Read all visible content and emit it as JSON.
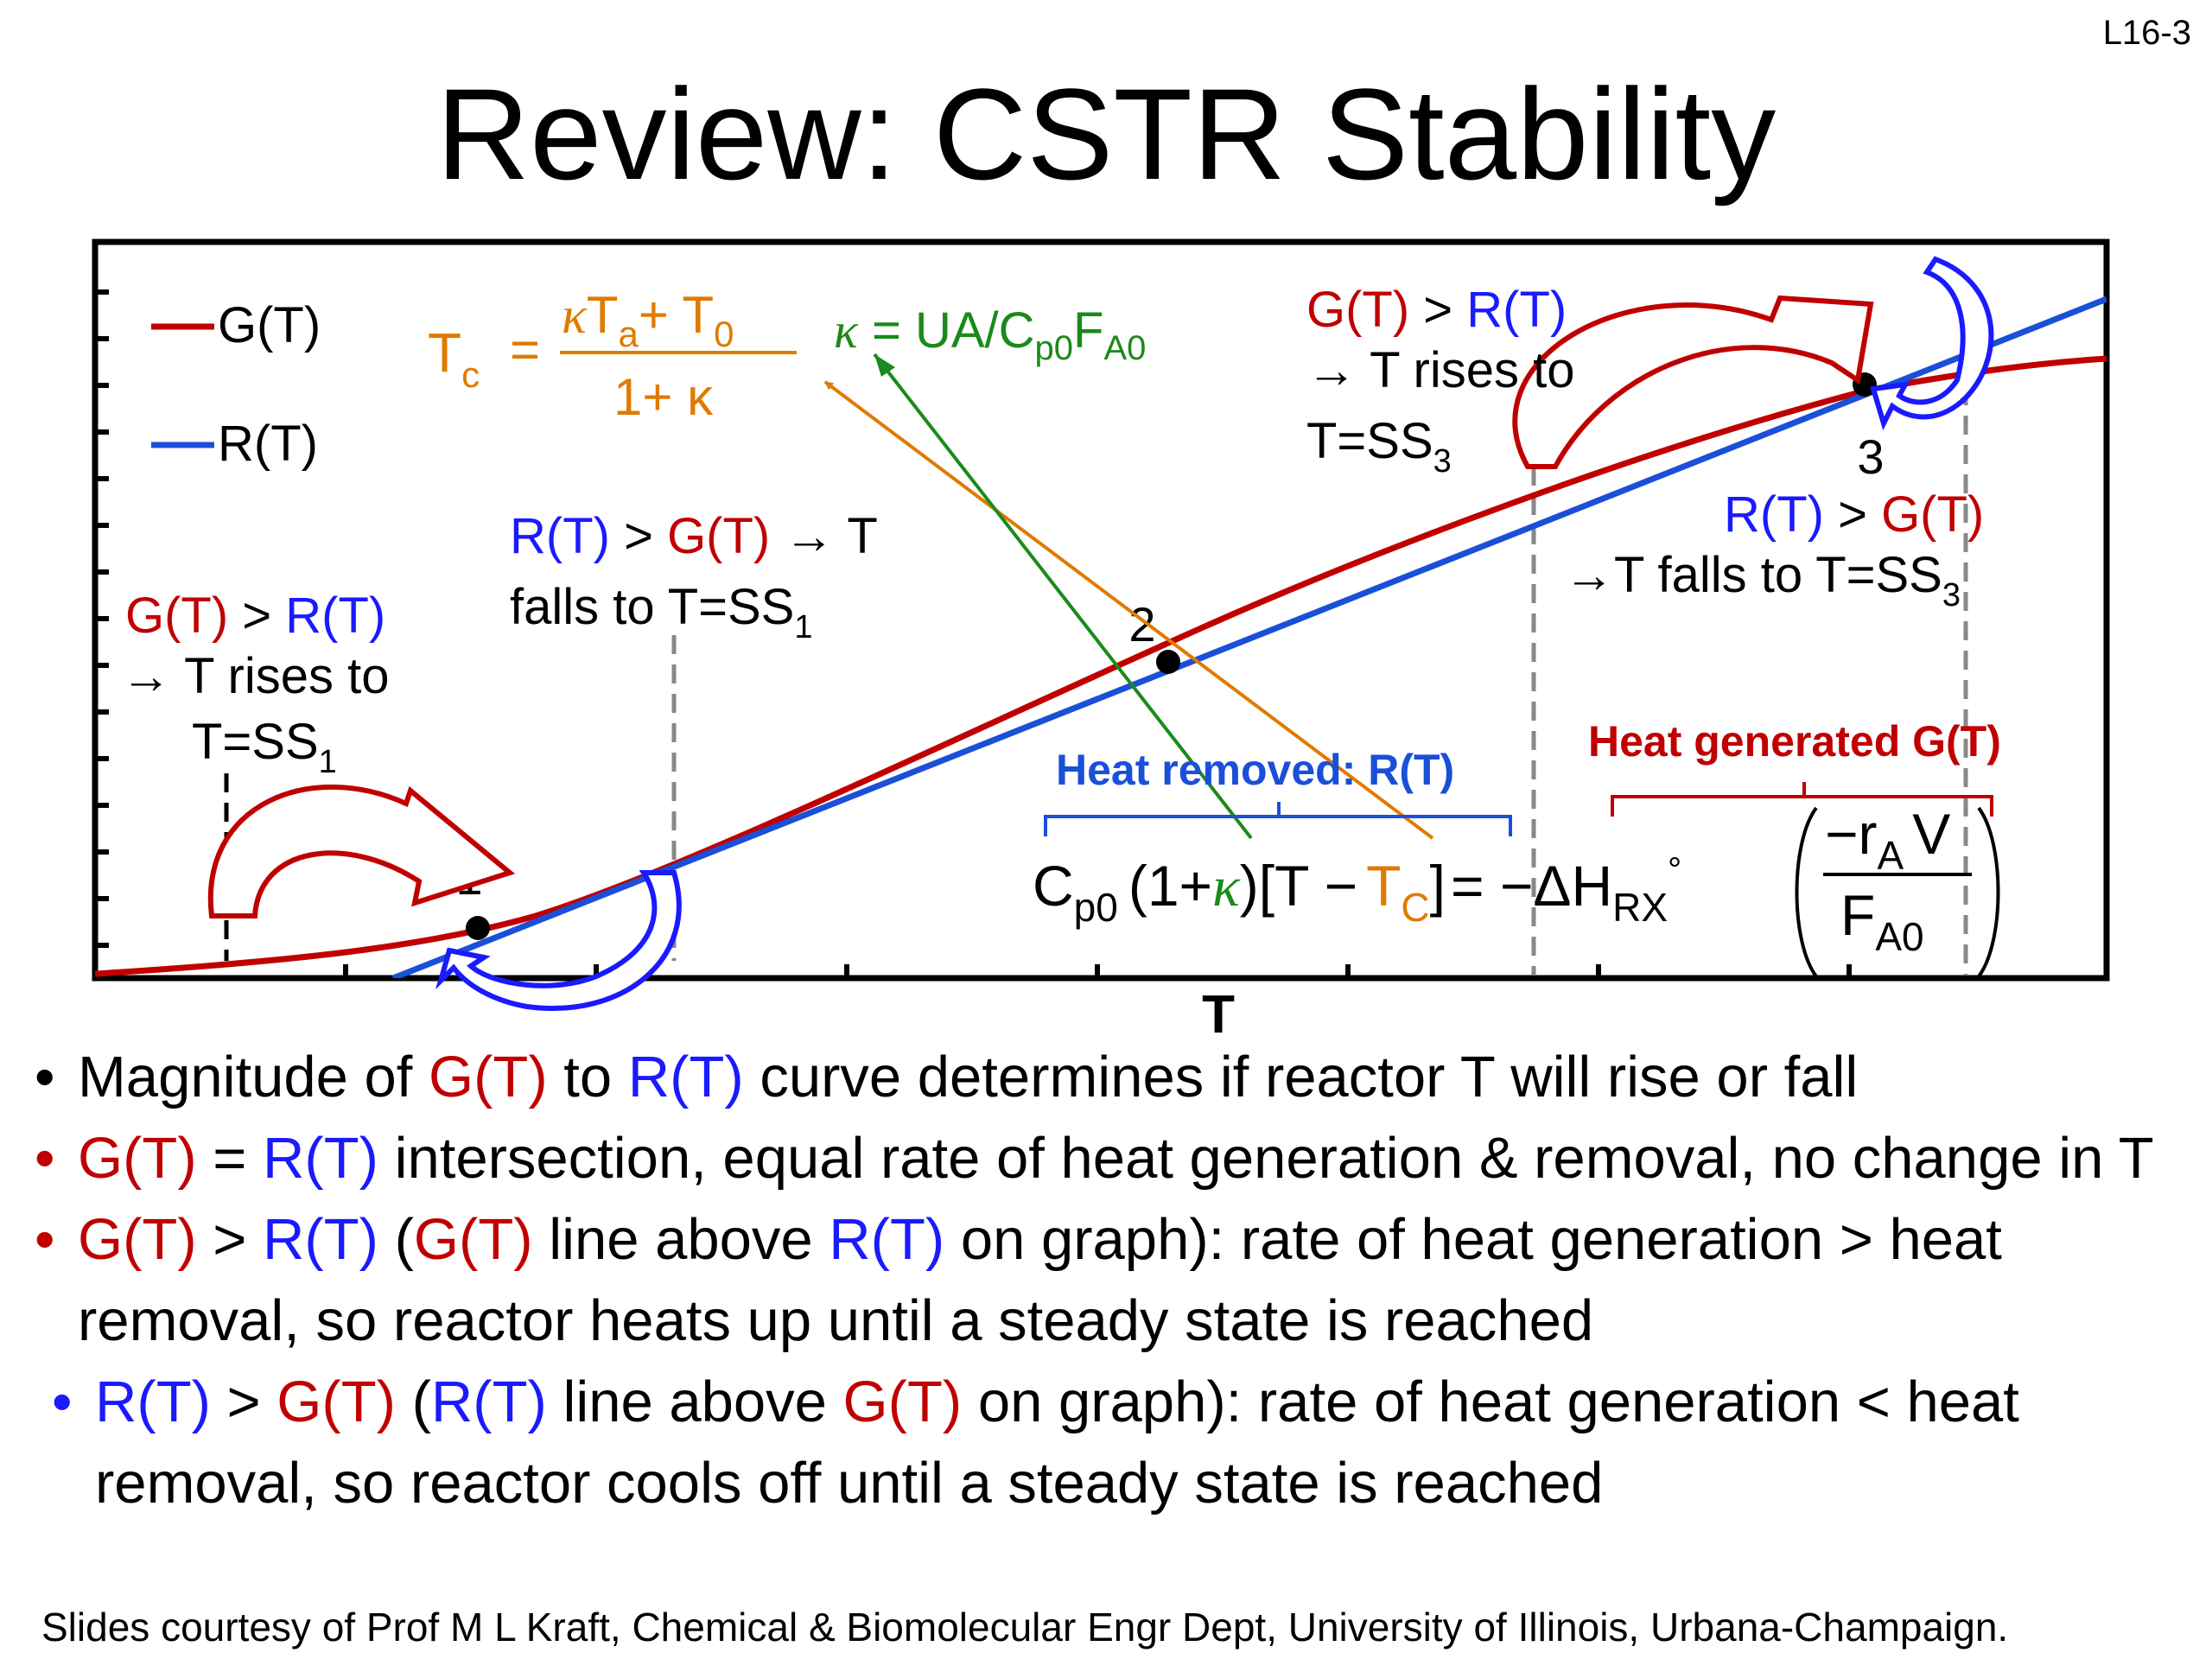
{
  "slide_number": "L16-3",
  "title": "Review: CSTR Stability",
  "colors": {
    "red": "#c00000",
    "blue": "#1a1aff",
    "orange": "#e07a00",
    "green": "#1a8a1a",
    "gray": "#888888"
  },
  "diagram": {
    "legend": {
      "g": "G(T)",
      "r": "R(T)"
    },
    "x_axis_label": "T",
    "tc": {
      "lhs": "T",
      "lhs_sub": "c",
      "equals": "=",
      "num_kappa": "κ",
      "num_ta": "T",
      "num_ta_sub": "a",
      "num_plus": "+ T",
      "num_t0_sub": "0",
      "den": "1+ κ"
    },
    "kappa": {
      "sym": "κ",
      "eq": " = UA/C",
      "sub1": "p0",
      "mid": "F",
      "sub2": "A0"
    },
    "ann_left": {
      "g": "G(T)",
      "gt": " > ",
      "r": "R(T)",
      "line2": "→ T rises to",
      "line3": "T=SS",
      "line3_sub": "1"
    },
    "ann_mid": {
      "r": "R(T)",
      "gt": " > ",
      "g": "G(T)",
      "arrow_t": " → T",
      "line2": "falls to T=SS",
      "line2_sub": "1"
    },
    "ann_right_top": {
      "g": "G(T)",
      "gt": " > ",
      "r": "R(T)",
      "line2": "→ T rises to",
      "line3": "T=SS",
      "line3_sub": "3"
    },
    "ann_right_mid": {
      "r": "R(T)",
      "gt": " > ",
      "g": "G(T)",
      "line2": "→T falls to T=SS",
      "line2_sub": "3"
    },
    "points": {
      "p1": "1",
      "p2": "2",
      "p3": "3"
    },
    "heat_removed_label": "Heat removed: R(T)",
    "heat_generated_label": "Heat generated G(T)",
    "equation": {
      "cp": "C",
      "cp_sub": "p0",
      "open": "(1+",
      "kappa": "κ",
      "close": ")[T −",
      "tcap": "T",
      "tcap_sub": "C",
      "rb": "]",
      "rhs": "= −ΔH",
      "rhs_sub": "RX",
      "deg": "°",
      "frac_num": "−r",
      "frac_num_sub": "A",
      "frac_num_v": "V",
      "frac_den": "F",
      "frac_den_sub": "A0"
    }
  },
  "bullets": [
    {
      "dot": "•",
      "parts": [
        {
          "t": "Magnitude of "
        },
        {
          "t": "G(T)",
          "c": "red"
        },
        {
          "t": " to "
        },
        {
          "t": "R(T)",
          "c": "blue"
        },
        {
          "t": " curve determines if reactor T will rise or fall"
        }
      ]
    },
    {
      "dot": "•",
      "parts": [
        {
          "t": "G(T)",
          "c": "red"
        },
        {
          "t": " = "
        },
        {
          "t": "R(T)",
          "c": "blue"
        },
        {
          "t": " intersection, equal rate of heat generation & removal, no change in T"
        }
      ]
    },
    {
      "dot": "•",
      "parts": [
        {
          "t": "G(T)",
          "c": "red"
        },
        {
          "t": " > "
        },
        {
          "t": "R(T)",
          "c": "blue"
        },
        {
          "t": " ("
        },
        {
          "t": "G(T)",
          "c": "red"
        },
        {
          "t": " line above "
        },
        {
          "t": "R(T)",
          "c": "blue"
        },
        {
          "t": " on graph): rate of heat generation > heat removal, so reactor heats up until a steady state is reached"
        }
      ]
    },
    {
      "dot": "•",
      "parts": [
        {
          "t": "R(T)",
          "c": "blue"
        },
        {
          "t": " > "
        },
        {
          "t": "G(T)",
          "c": "red"
        },
        {
          "t": " ("
        },
        {
          "t": "R(T)",
          "c": "blue"
        },
        {
          "t": " line above "
        },
        {
          "t": "G(T)",
          "c": "red"
        },
        {
          "t": " on graph): rate of heat generation < heat removal, so reactor cools off until a steady state is reached"
        }
      ]
    }
  ],
  "credit": "Slides courtesy of Prof M L Kraft, Chemical & Biomolecular Engr Dept, University of Illinois, Urbana-Champaign."
}
